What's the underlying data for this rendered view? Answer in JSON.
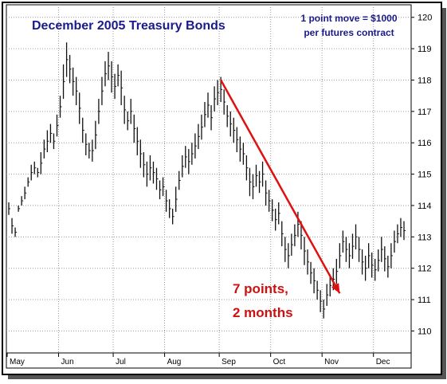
{
  "chart_data": {
    "type": "ohlc-bar",
    "title": "December 2005 Treasury Bonds",
    "note_line1": "1 point move = $1000",
    "note_line2": "per futures contract",
    "annotation_line1": "7 points,",
    "annotation_line2": "2 months",
    "ylim": [
      109.3,
      120.4
    ],
    "y_ticks": [
      110,
      111,
      112,
      113,
      114,
      115,
      116,
      117,
      118,
      119,
      120
    ],
    "y_tick_labels": [
      "110",
      "111",
      "112",
      "113",
      "114",
      "115",
      "116",
      "117",
      "118",
      "119",
      "120"
    ],
    "months": [
      "May",
      "Jun",
      "Jul",
      "Aug",
      "Sep",
      "Oct",
      "Nov",
      "Dec"
    ],
    "month_start_index": [
      0,
      16,
      33,
      49,
      66,
      82,
      98,
      114
    ],
    "total_bars": 124,
    "grid": true,
    "trendline": {
      "from_index": 66,
      "from_price": 118.0,
      "to_index": 103,
      "to_price": 111.2
    },
    "bars": [
      {
        "h": 114.1,
        "l": 113.7
      },
      {
        "h": 113.6,
        "l": 113.1
      },
      {
        "h": 113.3,
        "l": 113.0
      },
      {
        "h": 114.0,
        "l": 113.8
      },
      {
        "h": 114.3,
        "l": 114.0
      },
      {
        "h": 114.6,
        "l": 114.2
      },
      {
        "h": 114.9,
        "l": 114.6
      },
      {
        "h": 115.3,
        "l": 114.8
      },
      {
        "h": 115.4,
        "l": 115.0
      },
      {
        "h": 115.2,
        "l": 114.9
      },
      {
        "h": 115.7,
        "l": 115.0
      },
      {
        "h": 116.1,
        "l": 115.5
      },
      {
        "h": 116.4,
        "l": 115.7
      },
      {
        "h": 116.6,
        "l": 116.0
      },
      {
        "h": 116.3,
        "l": 115.8
      },
      {
        "h": 116.9,
        "l": 116.2
      },
      {
        "h": 117.5,
        "l": 116.8
      },
      {
        "h": 118.5,
        "l": 117.4
      },
      {
        "h": 119.2,
        "l": 118.1
      },
      {
        "h": 118.8,
        "l": 117.9
      },
      {
        "h": 118.4,
        "l": 117.5
      },
      {
        "h": 118.1,
        "l": 117.2
      },
      {
        "h": 117.6,
        "l": 116.6
      },
      {
        "h": 116.8,
        "l": 116.0
      },
      {
        "h": 116.3,
        "l": 115.6
      },
      {
        "h": 116.0,
        "l": 115.5
      },
      {
        "h": 116.1,
        "l": 115.4
      },
      {
        "h": 116.7,
        "l": 115.8
      },
      {
        "h": 117.4,
        "l": 116.6
      },
      {
        "h": 118.1,
        "l": 117.2
      },
      {
        "h": 118.6,
        "l": 117.8
      },
      {
        "h": 118.9,
        "l": 118.0
      },
      {
        "h": 118.6,
        "l": 117.6
      },
      {
        "h": 118.2,
        "l": 117.4
      },
      {
        "h": 118.5,
        "l": 117.8
      },
      {
        "h": 118.3,
        "l": 117.2
      },
      {
        "h": 117.5,
        "l": 116.6
      },
      {
        "h": 117.0,
        "l": 116.4
      },
      {
        "h": 117.4,
        "l": 116.6
      },
      {
        "h": 116.9,
        "l": 116.0
      },
      {
        "h": 116.5,
        "l": 115.6
      },
      {
        "h": 116.1,
        "l": 115.2
      },
      {
        "h": 115.7,
        "l": 114.9
      },
      {
        "h": 115.4,
        "l": 114.6
      },
      {
        "h": 115.6,
        "l": 114.8
      },
      {
        "h": 115.4,
        "l": 114.7
      },
      {
        "h": 115.2,
        "l": 114.5
      },
      {
        "h": 114.8,
        "l": 114.2
      },
      {
        "h": 114.9,
        "l": 114.3
      },
      {
        "h": 114.5,
        "l": 113.8
      },
      {
        "h": 114.2,
        "l": 113.6
      },
      {
        "h": 113.9,
        "l": 113.4
      },
      {
        "h": 114.6,
        "l": 113.8
      },
      {
        "h": 115.1,
        "l": 114.5
      },
      {
        "h": 115.6,
        "l": 114.9
      },
      {
        "h": 115.9,
        "l": 115.2
      },
      {
        "h": 115.8,
        "l": 115.0
      },
      {
        "h": 116.0,
        "l": 115.3
      },
      {
        "h": 116.3,
        "l": 115.5
      },
      {
        "h": 116.6,
        "l": 115.8
      },
      {
        "h": 116.9,
        "l": 116.1
      },
      {
        "h": 117.3,
        "l": 116.5
      },
      {
        "h": 117.6,
        "l": 116.8
      },
      {
        "h": 117.2,
        "l": 116.4
      },
      {
        "h": 117.8,
        "l": 117.0
      },
      {
        "h": 118.0,
        "l": 117.2
      },
      {
        "h": 118.1,
        "l": 117.3
      },
      {
        "h": 117.7,
        "l": 116.9
      },
      {
        "h": 117.2,
        "l": 116.5
      },
      {
        "h": 117.0,
        "l": 116.2
      },
      {
        "h": 116.8,
        "l": 116.0
      },
      {
        "h": 116.5,
        "l": 115.7
      },
      {
        "h": 116.2,
        "l": 115.4
      },
      {
        "h": 116.0,
        "l": 115.3
      },
      {
        "h": 115.6,
        "l": 114.8
      },
      {
        "h": 115.2,
        "l": 114.3
      },
      {
        "h": 115.0,
        "l": 114.2
      },
      {
        "h": 115.3,
        "l": 114.6
      },
      {
        "h": 115.1,
        "l": 114.4
      },
      {
        "h": 115.4,
        "l": 114.6
      },
      {
        "h": 114.8,
        "l": 114.0
      },
      {
        "h": 114.5,
        "l": 113.8
      },
      {
        "h": 114.2,
        "l": 113.5
      },
      {
        "h": 113.9,
        "l": 113.2
      },
      {
        "h": 114.1,
        "l": 113.4
      },
      {
        "h": 113.5,
        "l": 112.7
      },
      {
        "h": 113.0,
        "l": 112.2
      },
      {
        "h": 112.8,
        "l": 112.0
      },
      {
        "h": 113.1,
        "l": 112.4
      },
      {
        "h": 113.4,
        "l": 112.7
      },
      {
        "h": 113.8,
        "l": 113.0
      },
      {
        "h": 113.5,
        "l": 112.6
      },
      {
        "h": 113.0,
        "l": 112.1
      },
      {
        "h": 112.6,
        "l": 111.8
      },
      {
        "h": 112.2,
        "l": 111.5
      },
      {
        "h": 112.0,
        "l": 111.2
      },
      {
        "h": 111.6,
        "l": 111.0
      },
      {
        "h": 111.3,
        "l": 110.6
      },
      {
        "h": 111.0,
        "l": 110.4
      },
      {
        "h": 111.5,
        "l": 110.8
      },
      {
        "h": 111.8,
        "l": 111.1
      },
      {
        "h": 112.0,
        "l": 111.3
      },
      {
        "h": 112.3,
        "l": 111.5
      },
      {
        "h": 112.8,
        "l": 112.0
      },
      {
        "h": 113.2,
        "l": 112.5
      },
      {
        "h": 113.0,
        "l": 112.2
      },
      {
        "h": 112.8,
        "l": 112.0
      },
      {
        "h": 113.1,
        "l": 112.3
      },
      {
        "h": 113.4,
        "l": 112.6
      },
      {
        "h": 113.0,
        "l": 112.2
      },
      {
        "h": 112.6,
        "l": 111.8
      },
      {
        "h": 112.4,
        "l": 111.6
      },
      {
        "h": 112.8,
        "l": 112.0
      },
      {
        "h": 112.5,
        "l": 111.7
      },
      {
        "h": 112.3,
        "l": 111.6
      },
      {
        "h": 112.6,
        "l": 111.9
      },
      {
        "h": 113.0,
        "l": 112.2
      },
      {
        "h": 112.7,
        "l": 111.9
      },
      {
        "h": 112.4,
        "l": 111.7
      },
      {
        "h": 112.8,
        "l": 112.0
      },
      {
        "h": 113.2,
        "l": 112.5
      },
      {
        "h": 113.4,
        "l": 112.8
      },
      {
        "h": 113.6,
        "l": 113.0
      },
      {
        "h": 113.5,
        "l": 112.9
      }
    ]
  }
}
